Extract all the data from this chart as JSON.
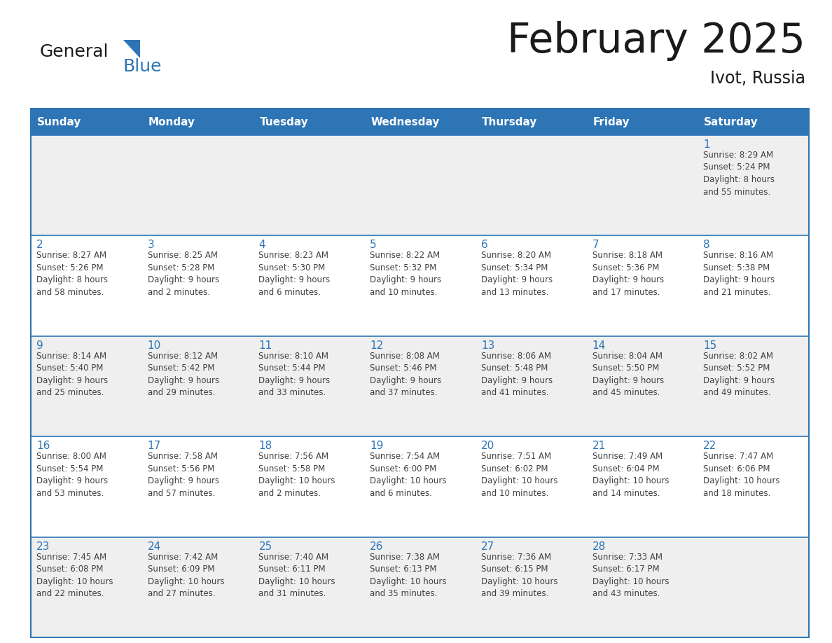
{
  "title": "February 2025",
  "subtitle": "Ivot, Russia",
  "header_color": "#2E75B6",
  "header_text_color": "#FFFFFF",
  "cell_bg_white": "#FFFFFF",
  "cell_bg_gray": "#EFEFEF",
  "border_color": "#2E75B6",
  "title_color": "#1A1A1A",
  "text_color": "#404040",
  "day_number_color": "#2E75B6",
  "logo_black": "#1A1A1A",
  "logo_blue_text": "#2E75B6",
  "logo_blue_tri": "#2E75B6",
  "days_of_week": [
    "Sunday",
    "Monday",
    "Tuesday",
    "Wednesday",
    "Thursday",
    "Friday",
    "Saturday"
  ],
  "row_bg": [
    "gray",
    "white",
    "gray",
    "white",
    "gray"
  ],
  "calendar_data": [
    [
      {
        "day": "",
        "info": ""
      },
      {
        "day": "",
        "info": ""
      },
      {
        "day": "",
        "info": ""
      },
      {
        "day": "",
        "info": ""
      },
      {
        "day": "",
        "info": ""
      },
      {
        "day": "",
        "info": ""
      },
      {
        "day": "1",
        "info": "Sunrise: 8:29 AM\nSunset: 5:24 PM\nDaylight: 8 hours\nand 55 minutes."
      }
    ],
    [
      {
        "day": "2",
        "info": "Sunrise: 8:27 AM\nSunset: 5:26 PM\nDaylight: 8 hours\nand 58 minutes."
      },
      {
        "day": "3",
        "info": "Sunrise: 8:25 AM\nSunset: 5:28 PM\nDaylight: 9 hours\nand 2 minutes."
      },
      {
        "day": "4",
        "info": "Sunrise: 8:23 AM\nSunset: 5:30 PM\nDaylight: 9 hours\nand 6 minutes."
      },
      {
        "day": "5",
        "info": "Sunrise: 8:22 AM\nSunset: 5:32 PM\nDaylight: 9 hours\nand 10 minutes."
      },
      {
        "day": "6",
        "info": "Sunrise: 8:20 AM\nSunset: 5:34 PM\nDaylight: 9 hours\nand 13 minutes."
      },
      {
        "day": "7",
        "info": "Sunrise: 8:18 AM\nSunset: 5:36 PM\nDaylight: 9 hours\nand 17 minutes."
      },
      {
        "day": "8",
        "info": "Sunrise: 8:16 AM\nSunset: 5:38 PM\nDaylight: 9 hours\nand 21 minutes."
      }
    ],
    [
      {
        "day": "9",
        "info": "Sunrise: 8:14 AM\nSunset: 5:40 PM\nDaylight: 9 hours\nand 25 minutes."
      },
      {
        "day": "10",
        "info": "Sunrise: 8:12 AM\nSunset: 5:42 PM\nDaylight: 9 hours\nand 29 minutes."
      },
      {
        "day": "11",
        "info": "Sunrise: 8:10 AM\nSunset: 5:44 PM\nDaylight: 9 hours\nand 33 minutes."
      },
      {
        "day": "12",
        "info": "Sunrise: 8:08 AM\nSunset: 5:46 PM\nDaylight: 9 hours\nand 37 minutes."
      },
      {
        "day": "13",
        "info": "Sunrise: 8:06 AM\nSunset: 5:48 PM\nDaylight: 9 hours\nand 41 minutes."
      },
      {
        "day": "14",
        "info": "Sunrise: 8:04 AM\nSunset: 5:50 PM\nDaylight: 9 hours\nand 45 minutes."
      },
      {
        "day": "15",
        "info": "Sunrise: 8:02 AM\nSunset: 5:52 PM\nDaylight: 9 hours\nand 49 minutes."
      }
    ],
    [
      {
        "day": "16",
        "info": "Sunrise: 8:00 AM\nSunset: 5:54 PM\nDaylight: 9 hours\nand 53 minutes."
      },
      {
        "day": "17",
        "info": "Sunrise: 7:58 AM\nSunset: 5:56 PM\nDaylight: 9 hours\nand 57 minutes."
      },
      {
        "day": "18",
        "info": "Sunrise: 7:56 AM\nSunset: 5:58 PM\nDaylight: 10 hours\nand 2 minutes."
      },
      {
        "day": "19",
        "info": "Sunrise: 7:54 AM\nSunset: 6:00 PM\nDaylight: 10 hours\nand 6 minutes."
      },
      {
        "day": "20",
        "info": "Sunrise: 7:51 AM\nSunset: 6:02 PM\nDaylight: 10 hours\nand 10 minutes."
      },
      {
        "day": "21",
        "info": "Sunrise: 7:49 AM\nSunset: 6:04 PM\nDaylight: 10 hours\nand 14 minutes."
      },
      {
        "day": "22",
        "info": "Sunrise: 7:47 AM\nSunset: 6:06 PM\nDaylight: 10 hours\nand 18 minutes."
      }
    ],
    [
      {
        "day": "23",
        "info": "Sunrise: 7:45 AM\nSunset: 6:08 PM\nDaylight: 10 hours\nand 22 minutes."
      },
      {
        "day": "24",
        "info": "Sunrise: 7:42 AM\nSunset: 6:09 PM\nDaylight: 10 hours\nand 27 minutes."
      },
      {
        "day": "25",
        "info": "Sunrise: 7:40 AM\nSunset: 6:11 PM\nDaylight: 10 hours\nand 31 minutes."
      },
      {
        "day": "26",
        "info": "Sunrise: 7:38 AM\nSunset: 6:13 PM\nDaylight: 10 hours\nand 35 minutes."
      },
      {
        "day": "27",
        "info": "Sunrise: 7:36 AM\nSunset: 6:15 PM\nDaylight: 10 hours\nand 39 minutes."
      },
      {
        "day": "28",
        "info": "Sunrise: 7:33 AM\nSunset: 6:17 PM\nDaylight: 10 hours\nand 43 minutes."
      },
      {
        "day": "",
        "info": ""
      }
    ]
  ]
}
